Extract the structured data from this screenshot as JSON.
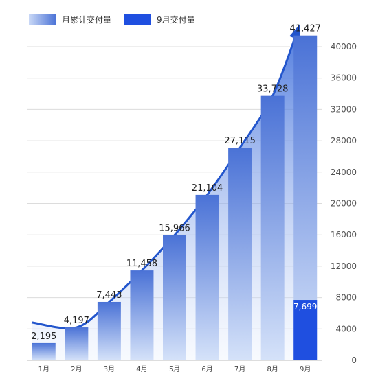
{
  "chart_data": {
    "type": "bar",
    "categories": [
      "1月",
      "2月",
      "3月",
      "4月",
      "5月",
      "6月",
      "7月",
      "8月",
      "9月"
    ],
    "series": [
      {
        "name": "月累计交付量",
        "values": [
          2195,
          4197,
          7443,
          11458,
          15966,
          21104,
          27115,
          33728,
          41427
        ],
        "labels": [
          "2,195",
          "4,197",
          "7,443",
          "11,458",
          "15,966",
          "21,104",
          "27,115",
          "33,728",
          "41,427"
        ]
      },
      {
        "name": "9月交付量",
        "category": "9月",
        "value": 7699,
        "label": "7,699"
      }
    ],
    "ylim": [
      0,
      40000
    ],
    "yticks": [
      0,
      4000,
      8000,
      12000,
      16000,
      20000,
      24000,
      28000,
      32000,
      36000,
      40000
    ],
    "ytick_labels": [
      "0",
      "4000",
      "8000",
      "12000",
      "16000",
      "20000",
      "24000",
      "28000",
      "32000",
      "36000",
      "40000"
    ],
    "y_axis_position": "right",
    "grid": true,
    "legend_position": "top-left",
    "colors": {
      "cumulative_top": "#4a72d6",
      "cumulative_bottom": "#d5e2f9",
      "monthly": "#1f4fe0",
      "area_top": "#2f63d8",
      "area_bottom": "#eaf1fd",
      "trend_arrow": "#2255cc",
      "grid": "#dcdcdc"
    }
  }
}
